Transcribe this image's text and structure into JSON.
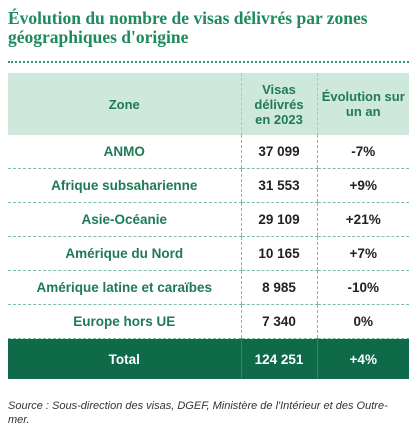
{
  "title": "Évolution du nombre de visas délivrés par zones géographiques d'origine",
  "table": {
    "headers": [
      "Zone",
      "Visas délivrés en 2023",
      "Évolution sur un an"
    ],
    "rows": [
      {
        "zone": "ANMO",
        "visas": "37 099",
        "evolution": "-7%"
      },
      {
        "zone": "Afrique subsaharienne",
        "visas": "31 553",
        "evolution": "+9%"
      },
      {
        "zone": "Asie-Océanie",
        "visas": "29 109",
        "evolution": "+21%"
      },
      {
        "zone": "Amérique du Nord",
        "visas": "10 165",
        "evolution": "+7%"
      },
      {
        "zone": "Amérique latine et caraïbes",
        "visas": "8 985",
        "evolution": "-10%"
      },
      {
        "zone": "Europe hors UE",
        "visas": "7 340",
        "evolution": "0%"
      }
    ],
    "total": {
      "zone": "Total",
      "visas": "124 251",
      "evolution": "+4%"
    }
  },
  "source": "Source : Sous-direction des visas, DGEF, Ministère de l'Intérieur et des Outre-mer.",
  "colors": {
    "title_green": "#1f8a5e",
    "header_bg": "#cfe8dc",
    "total_bg": "#0f6a49"
  }
}
